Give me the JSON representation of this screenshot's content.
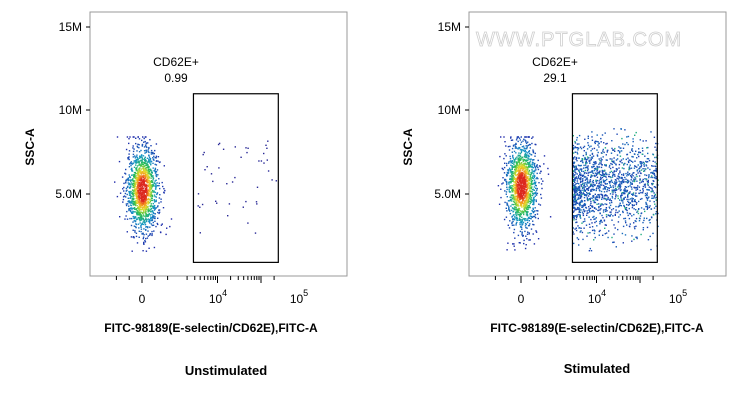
{
  "watermark": "WWW.PTGLAB.COM",
  "chart_data": [
    {
      "type": "scatter",
      "caption": "Unstimulated",
      "xlabel": "FITC-98189(E-selectin/CD62E),FITC-A",
      "ylabel": "SSC-A",
      "x_scale": "biexponential",
      "x_ticks": [
        "0",
        "10^4",
        "10^5"
      ],
      "y_ticks": [
        "5.0M",
        "10M",
        "15M"
      ],
      "ylim": [
        0,
        15500000
      ],
      "gate": {
        "name": "CD62E+",
        "percent": "0.99",
        "x_range": [
          2800,
          250000
        ],
        "y_range": [
          800000,
          10700000
        ]
      },
      "population": {
        "main_cluster": {
          "x_center": 0,
          "y_center": 5100000,
          "y_sd": 1250000
        },
        "sparse_events_in_gate": 45
      }
    },
    {
      "type": "scatter",
      "caption": "Stimulated",
      "xlabel": "FITC-98189(E-selectin/CD62E),FITC-A",
      "ylabel": "SSC-A",
      "x_scale": "biexponential",
      "x_ticks": [
        "0",
        "10^4",
        "10^5"
      ],
      "y_ticks": [
        "5.0M",
        "10M",
        "15M"
      ],
      "ylim": [
        0,
        15500000
      ],
      "gate": {
        "name": "CD62E+",
        "percent": "29.1",
        "x_range": [
          2800,
          250000
        ],
        "y_range": [
          800000,
          10700000
        ]
      },
      "population": {
        "main_cluster": {
          "x_center": 0,
          "y_center": 5300000,
          "y_sd": 1300000
        },
        "gated_events_dense": 1500
      }
    }
  ]
}
